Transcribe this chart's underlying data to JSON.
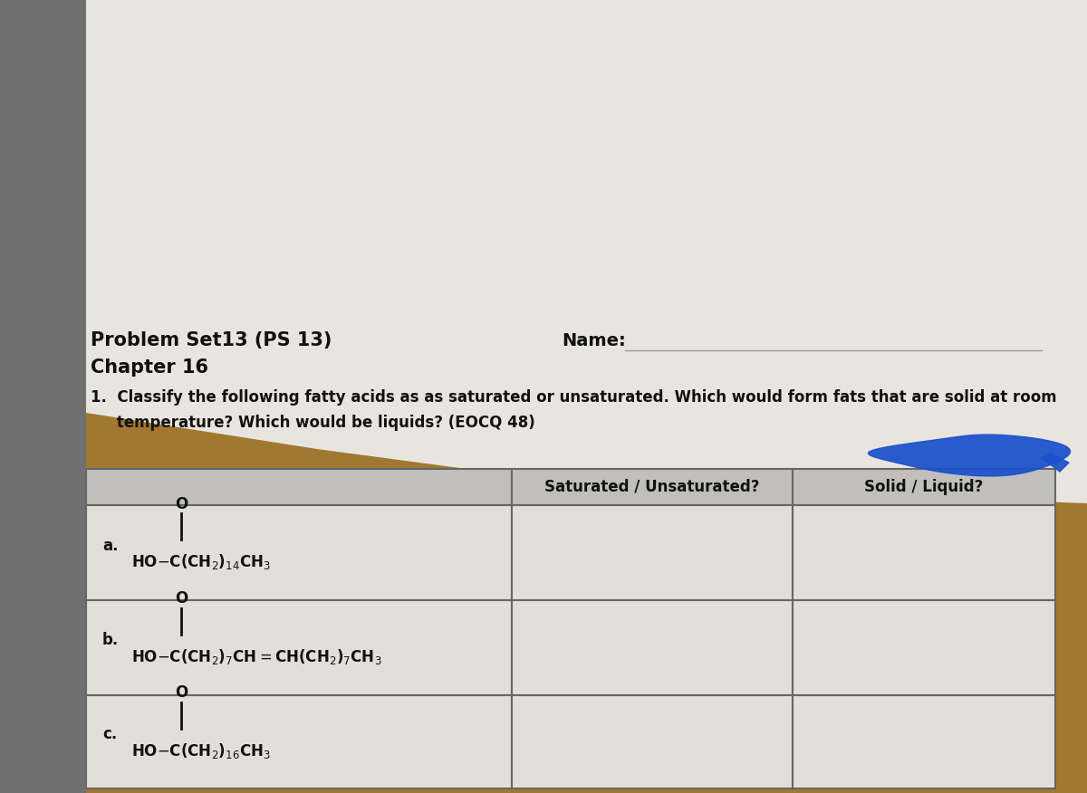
{
  "wood_color": "#a07830",
  "wood_color2": "#b89050",
  "paper_color": "#dedad4",
  "paper_color2": "#e8e5df",
  "left_strip_color": "#707070",
  "title_line1": "Problem Set13 (PS 13)",
  "title_line2": "Chapter 16",
  "name_label": "Name:",
  "question_text_line1": "1.  Classify the following fatty acids as as saturated or unsaturated. Which would form fats that are solid at room",
  "question_text_line2": "     temperature? Which would be liquids? (EOCQ 48)",
  "col_header1": "Saturated / Unsaturated?",
  "col_header2": "Solid / Liquid?",
  "table_border_color": "#666666",
  "header_bg_color": "#c0bfbc",
  "row_bg_color": "#e2dfd9",
  "text_color": "#111111",
  "blue_color": "#1a4fcc",
  "yellow_tab_color": "#e8c840"
}
